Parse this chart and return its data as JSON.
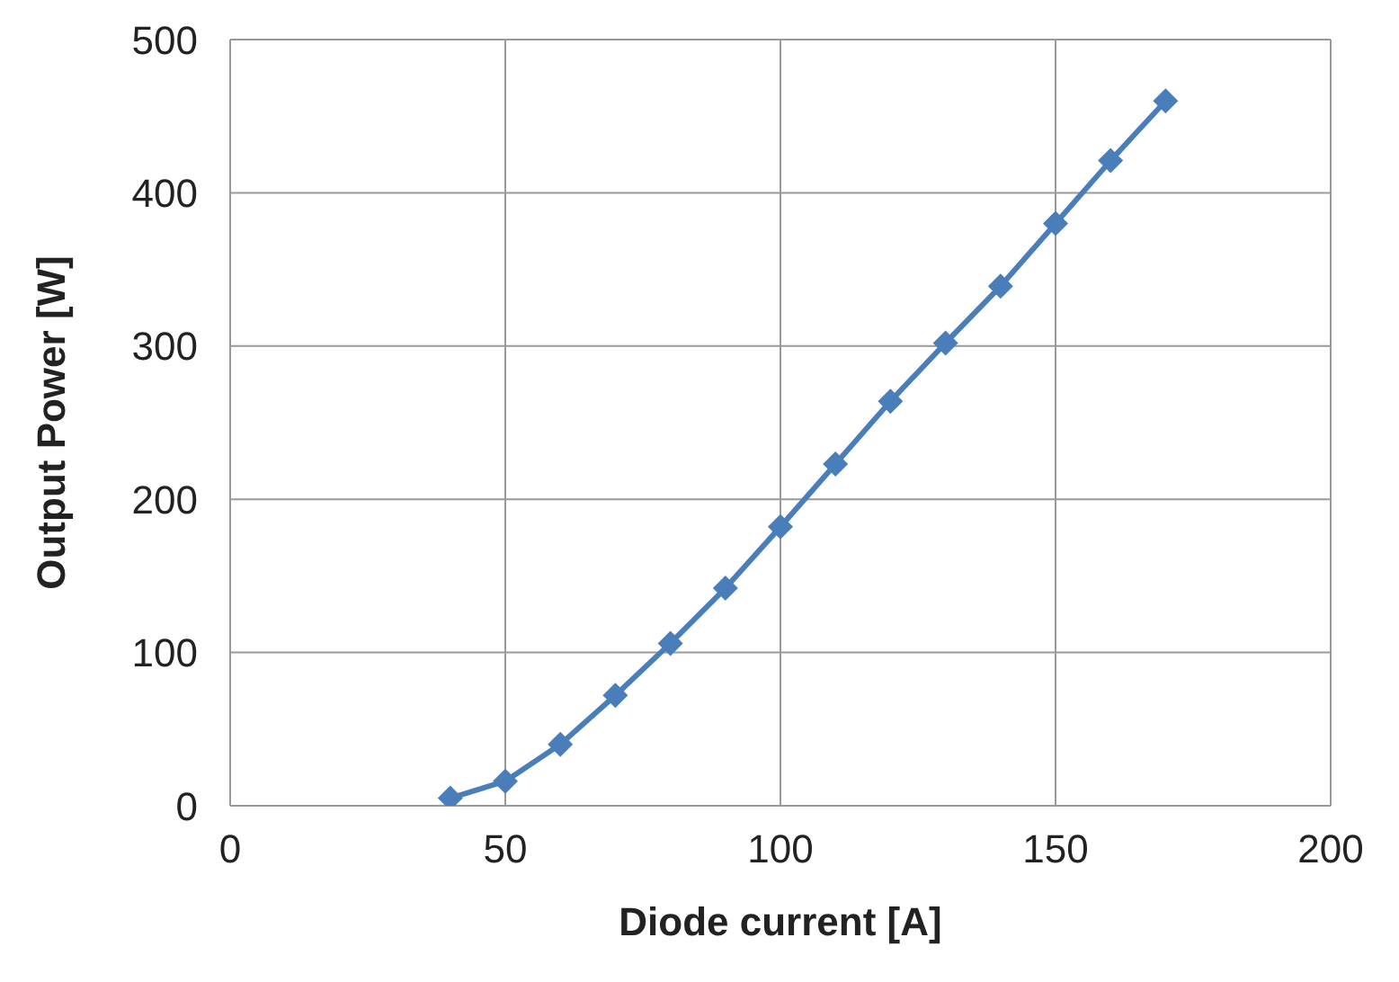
{
  "chart_data": {
    "type": "line",
    "xlabel": "Diode current [A]",
    "ylabel": "Output  Power [W]",
    "x": [
      40,
      50,
      60,
      70,
      80,
      90,
      100,
      110,
      120,
      130,
      140,
      150,
      160,
      170
    ],
    "series": [
      {
        "color": "#4a7ebb",
        "values": [
          5,
          16,
          40,
          72,
          106,
          142,
          182,
          223,
          264,
          302,
          339,
          380,
          421,
          460
        ]
      }
    ],
    "xlim": [
      0,
      200
    ],
    "xticks": [
      0,
      50,
      100,
      150,
      200
    ],
    "ylim": [
      0,
      500
    ],
    "yticks": [
      0,
      100,
      200,
      300,
      400,
      500
    ],
    "grid": true,
    "marker": "diamond",
    "line_style": "solid"
  }
}
